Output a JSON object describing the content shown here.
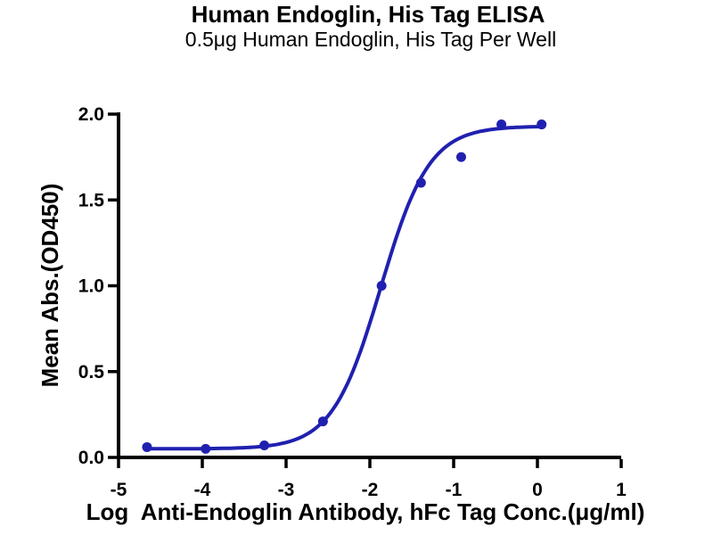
{
  "chart_data": {
    "type": "scatter",
    "title": "Human Endoglin, His Tag ELISA",
    "subtitle": "0.5μg Human Endoglin, His Tag Per Well",
    "xlabel": "Log  Anti-Endoglin Antibody, hFc Tag Conc.(μg/ml)",
    "ylabel": "Mean Abs.(OD450)",
    "xlim": [
      -5,
      1
    ],
    "ylim": [
      0,
      2
    ],
    "x_ticks": [
      -5,
      -4,
      -3,
      -2,
      -1,
      0,
      1
    ],
    "x_tick_labels": [
      "-5",
      "-4",
      "-3",
      "-2",
      "-1",
      "0",
      "1"
    ],
    "y_ticks": [
      0,
      0.5,
      1.0,
      1.5,
      2.0
    ],
    "y_tick_labels": [
      "0.0",
      "0.5",
      "1.0",
      "1.5",
      "2.0"
    ],
    "grid": false,
    "legend": "none",
    "series": [
      {
        "name": "Anti-Endoglin Antibody, hFc Tag",
        "x": [
          -4.66,
          -3.96,
          -3.26,
          -2.56,
          -1.86,
          -1.39,
          -0.91,
          -0.43,
          0.05
        ],
        "y": [
          0.06,
          0.05,
          0.07,
          0.21,
          1.0,
          1.6,
          1.75,
          1.94,
          1.94
        ]
      }
    ],
    "fit_curve": {
      "model": "4PL-sigmoid",
      "bottom": 0.05,
      "top": 1.93,
      "logEC50": -1.87,
      "hillslope": 1.5,
      "x_start": -4.66,
      "x_end": 0.05
    },
    "colors": {
      "points": "#2020b0",
      "curve": "#2020b0",
      "axis": "#000000",
      "text": "#000000"
    }
  }
}
